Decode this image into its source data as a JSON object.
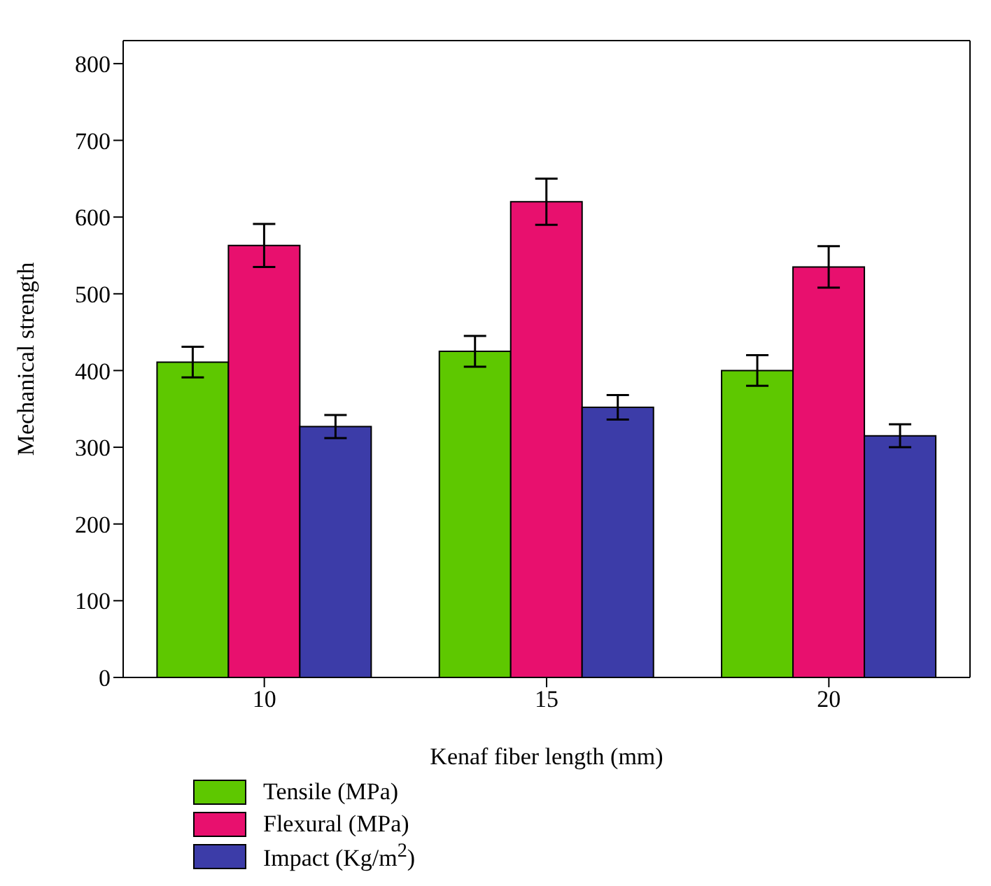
{
  "chart_data": {
    "type": "bar",
    "xlabel": "Kenaf fiber length (mm)",
    "ylabel": "Mechanical strength",
    "categories": [
      "10",
      "15",
      "20"
    ],
    "series": [
      {
        "name": "Tensile (MPa)",
        "color": "#5ec800",
        "values": [
          411,
          425,
          400
        ],
        "errors": [
          20,
          20,
          20
        ]
      },
      {
        "name": "Flexural (MPa)",
        "color": "#e8106e",
        "values": [
          563,
          620,
          535
        ],
        "errors": [
          28,
          30,
          27
        ]
      },
      {
        "name": "Impact (Kg/m$^{2}$)",
        "color": "#3c3ca8",
        "values": [
          327,
          352,
          315
        ],
        "errors": [
          15,
          16,
          15
        ]
      }
    ],
    "ylim": [
      0,
      830
    ],
    "yticks": [
      0,
      100,
      200,
      300,
      400,
      500,
      600,
      700,
      800
    ],
    "legend": "bottom left"
  }
}
